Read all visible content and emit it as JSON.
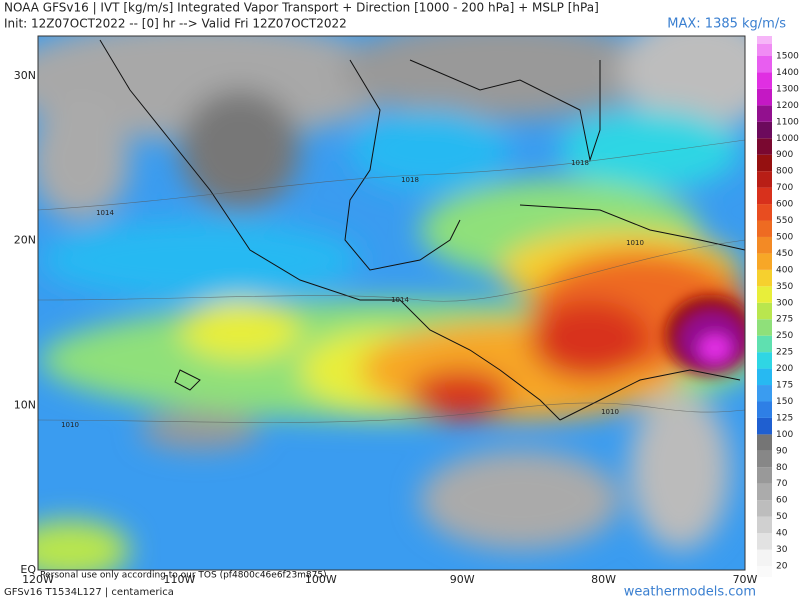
{
  "header": {
    "title": "NOAA GFSv16 | IVT [kg/m/s] Integrated Vapor Transport + Direction [1000 - 200 hPa] + MSLP [hPa]",
    "subtitle": "Init: 12Z07OCT2022 -- [0] hr --> Valid Fri 12Z07OCT2022",
    "max": "MAX: 1385 kg/m/s"
  },
  "map": {
    "longitudes": [
      "120W",
      "110W",
      "100W",
      "90W",
      "80W",
      "70W"
    ],
    "latitudes": [
      "EQ",
      "10N",
      "20N",
      "30N"
    ],
    "isobars": [
      "1018",
      "1018",
      "1014",
      "1014",
      "1010",
      "1010",
      "1010"
    ],
    "disclaimer": "Personal use only according to our TOS (pf4800c46e6f23m875)"
  },
  "colorbar": {
    "levels": [
      20,
      30,
      40,
      50,
      60,
      70,
      80,
      90,
      100,
      125,
      150,
      175,
      200,
      225,
      250,
      275,
      300,
      350,
      400,
      450,
      500,
      550,
      600,
      700,
      800,
      900,
      1000,
      1100,
      1200,
      1300,
      1400,
      1500
    ],
    "colors": [
      "#f4f4f4",
      "#e2e2e2",
      "#d0d0d0",
      "#bdbdbd",
      "#ababab",
      "#999999",
      "#878787",
      "#757575",
      "#1f5fd0",
      "#2e7fe6",
      "#3a9cf0",
      "#27b9f2",
      "#2fd6e4",
      "#5fe0b0",
      "#8fe07a",
      "#b9e64e",
      "#e8ee3a",
      "#f6d02e",
      "#f7a727",
      "#f38a25",
      "#ee6b22",
      "#e84d20",
      "#d8311c",
      "#b81e16",
      "#951010",
      "#7a0830",
      "#6c0a5c",
      "#92108e",
      "#c418c4",
      "#e02fe2",
      "#e85ef0",
      "#f08cf4"
    ],
    "top_color": "#f6b6f8"
  },
  "footer": {
    "model": "GFSv16 T1534L127 | centamerica",
    "site": "weathermodels.com"
  }
}
